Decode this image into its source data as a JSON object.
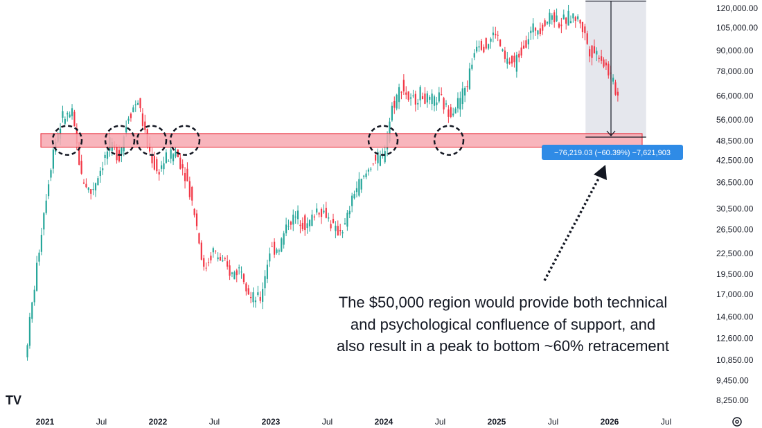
{
  "chart_data": {
    "type": "candlestick",
    "title": "",
    "x_ticks": [
      "2021",
      "Jul",
      "2022",
      "Jul",
      "2023",
      "Jul",
      "2024",
      "Jul",
      "2025",
      "Jul",
      "2026",
      "Jul"
    ],
    "y_ticks": [
      "120,000.00",
      "105,000.00",
      "90,000.00",
      "78,000.00",
      "66,000.00",
      "56,000.00",
      "48,500.00",
      "42,500.00",
      "36,500.00",
      "30,500.00",
      "26,500.00",
      "22,500.00",
      "19,500.00",
      "17,000.00",
      "14,600.00",
      "12,600.00",
      "10,850.00",
      "9,450.00",
      "8,250.00"
    ],
    "y_scale": "log",
    "price_series": [
      [
        "2020-11",
        11000
      ],
      [
        "2020-12",
        18000
      ],
      [
        "2021-01",
        30000
      ],
      [
        "2021-02",
        46000
      ],
      [
        "2021-03",
        57000
      ],
      [
        "2021-04",
        58000
      ],
      [
        "2021-05",
        38000
      ],
      [
        "2021-06",
        34000
      ],
      [
        "2021-07",
        40000
      ],
      [
        "2021-08",
        47000
      ],
      [
        "2021-09",
        44000
      ],
      [
        "2021-10",
        58000
      ],
      [
        "2021-11",
        64000
      ],
      [
        "2021-12",
        47000
      ],
      [
        "2022-01",
        39000
      ],
      [
        "2022-02",
        43000
      ],
      [
        "2022-03",
        45000
      ],
      [
        "2022-04",
        39000
      ],
      [
        "2022-05",
        30000
      ],
      [
        "2022-06",
        20000
      ],
      [
        "2022-07",
        23000
      ],
      [
        "2022-08",
        21000
      ],
      [
        "2022-09",
        19500
      ],
      [
        "2022-10",
        20500
      ],
      [
        "2022-11",
        16500
      ],
      [
        "2022-12",
        16500
      ],
      [
        "2023-01",
        23000
      ],
      [
        "2023-02",
        23500
      ],
      [
        "2023-03",
        28000
      ],
      [
        "2023-04",
        29000
      ],
      [
        "2023-05",
        27000
      ],
      [
        "2023-06",
        30500
      ],
      [
        "2023-07",
        29500
      ],
      [
        "2023-08",
        26000
      ],
      [
        "2023-09",
        27000
      ],
      [
        "2023-10",
        34500
      ],
      [
        "2023-11",
        37500
      ],
      [
        "2023-12",
        42500
      ],
      [
        "2024-01",
        43000
      ],
      [
        "2024-02",
        61000
      ],
      [
        "2024-03",
        71000
      ],
      [
        "2024-04",
        63000
      ],
      [
        "2024-05",
        67000
      ],
      [
        "2024-06",
        63000
      ],
      [
        "2024-07",
        65000
      ],
      [
        "2024-08",
        59000
      ],
      [
        "2024-09",
        63000
      ],
      [
        "2024-10",
        72000
      ],
      [
        "2024-11",
        96000
      ],
      [
        "2024-12",
        93000
      ],
      [
        "2025-01",
        102000
      ],
      [
        "2025-02",
        84000
      ],
      [
        "2025-03",
        82000
      ],
      [
        "2025-04",
        94000
      ],
      [
        "2025-05",
        104000
      ],
      [
        "2025-06",
        107000
      ],
      [
        "2025-07",
        115000
      ],
      [
        "2025-08",
        108000
      ],
      [
        "2025-09",
        114000
      ],
      [
        "2025-10",
        110000
      ],
      [
        "2025-11",
        90000
      ],
      [
        "2025-12",
        88000
      ],
      [
        "2026-01",
        78000
      ],
      [
        "2026-02",
        66000
      ]
    ],
    "support_zone": {
      "low": 46500,
      "high": 51000
    },
    "support_touches": [
      "2021-02",
      "2021-09",
      "2021-12",
      "2022-03",
      "2024-02",
      "2024-08"
    ],
    "measure": {
      "from": 126000,
      "to": 49780,
      "from_date": "2025-10",
      "to_date": "2026-03"
    }
  },
  "measure_label": "−76,219.03 (−60.39%) −7,621,903",
  "annotation": {
    "line1": "The $50,000 region would provide both technical",
    "line2": "and psychological confluence of support, and",
    "line3": "also result in a peak to bottom ~60% retracement"
  },
  "colors": {
    "up": "#26a69a",
    "down": "#f23645",
    "zone_fill": "#f7a8b0",
    "zone_stroke": "#e8202f",
    "measure_bg": "#dfe1e8",
    "badge": "#2f8be6"
  },
  "logo_text": "TV",
  "settings_icon": "gear-icon"
}
